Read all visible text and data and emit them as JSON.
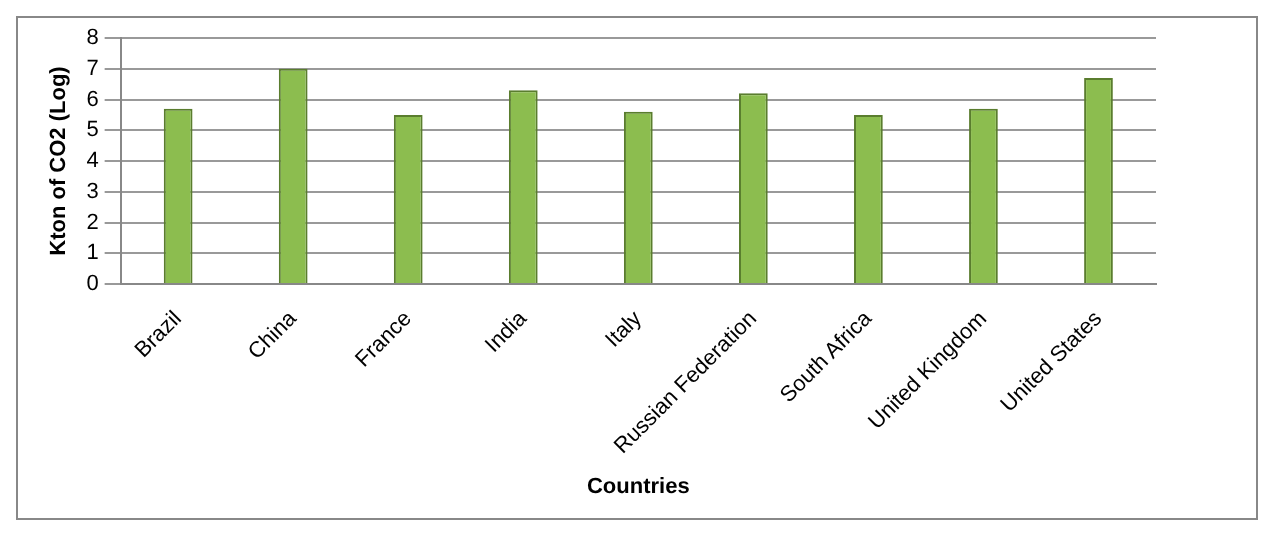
{
  "chart_data": {
    "type": "bar",
    "xlabel": "Countries",
    "ylabel": "Kton of CO2 (Log)",
    "categories": [
      "Brazil",
      "China",
      "France",
      "India",
      "Italy",
      "Russian Federation",
      "South Africa",
      "United Kingdom",
      "United States"
    ],
    "values": [
      5.7,
      7.0,
      5.5,
      6.3,
      5.6,
      6.2,
      5.5,
      5.7,
      6.7
    ],
    "color": "#8cbd4f",
    "ylim": [
      0,
      8
    ],
    "yticks": [
      0,
      1,
      2,
      3,
      4,
      5,
      6,
      7,
      8
    ],
    "grid": "y",
    "legend": false
  }
}
